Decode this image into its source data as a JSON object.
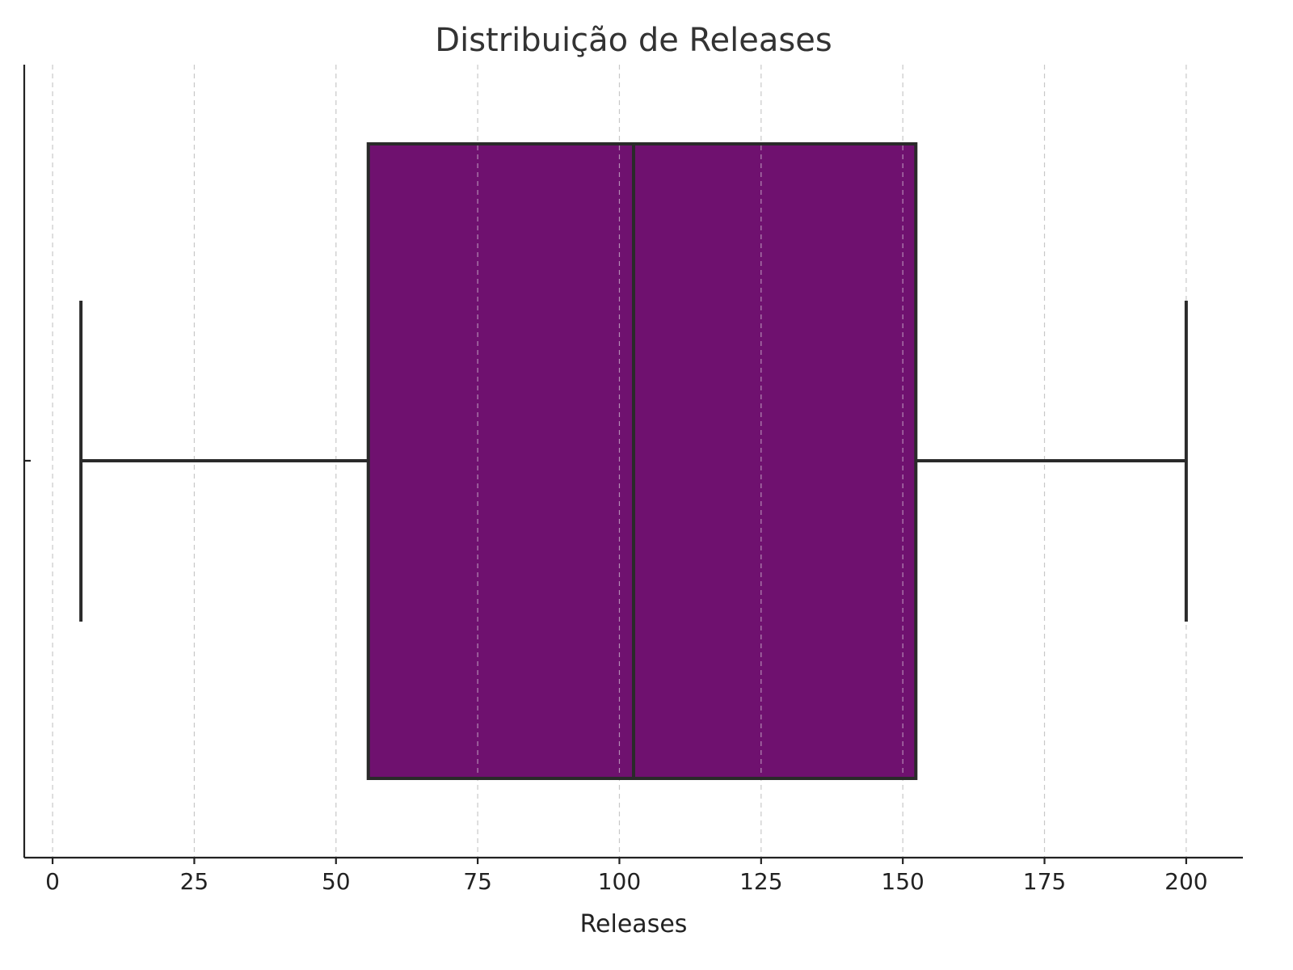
{
  "chart_data": {
    "type": "box",
    "title": "Distribuição de Releases",
    "xlabel": "Releases",
    "ylabel": "",
    "xlim": [
      -5,
      210
    ],
    "xticks": [
      0,
      25,
      50,
      75,
      100,
      125,
      150,
      175,
      200
    ],
    "grid": "x, dashed",
    "box": {
      "whisker_low": 5,
      "q1": 55.7,
      "median": 102.5,
      "q3": 152.3,
      "whisker_high": 200,
      "color": "#6f116f"
    }
  }
}
